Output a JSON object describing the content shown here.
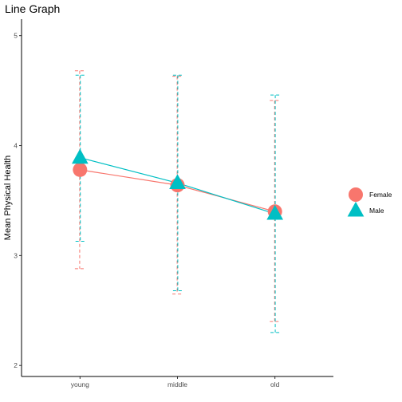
{
  "chart_data": {
    "type": "line",
    "title": "Line Graph",
    "xlabel": "",
    "ylabel": "Mean Physical Health",
    "categories": [
      "young",
      "middle",
      "old"
    ],
    "ylim": [
      1.9,
      5.15
    ],
    "yticks": [
      2,
      3,
      4,
      5
    ],
    "ytick_labels": [
      "2",
      "3",
      "4",
      "5"
    ],
    "grid": false,
    "legend_position": "right",
    "series": [
      {
        "name": "Female",
        "color": "#F8766D",
        "marker": "circle",
        "values": [
          3.78,
          3.64,
          3.4
        ],
        "error_low": [
          2.88,
          2.65,
          2.4
        ],
        "error_high": [
          4.68,
          4.63,
          4.41
        ]
      },
      {
        "name": "Male",
        "color": "#00BFC4",
        "marker": "triangle",
        "values": [
          3.89,
          3.66,
          3.38
        ],
        "error_low": [
          3.13,
          2.68,
          2.3
        ],
        "error_high": [
          4.64,
          4.64,
          4.46
        ]
      }
    ]
  }
}
